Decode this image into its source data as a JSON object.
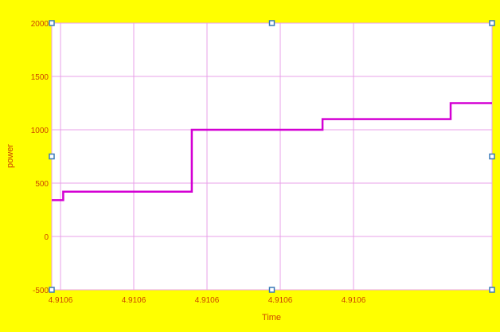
{
  "chart_data": {
    "type": "line",
    "title": "",
    "xlabel": "Time",
    "ylabel": "power",
    "x_tick_labels": [
      "4.9106",
      "4.9106",
      "4.9106",
      "4.9106",
      "4.9106"
    ],
    "y_ticks": [
      -500,
      0,
      500,
      1000,
      1500,
      2000
    ],
    "y_tick_labels": [
      "-500",
      "0",
      "500",
      "1000",
      "1500",
      "2000"
    ],
    "xlim": [
      0,
      100
    ],
    "ylim": [
      -500,
      2000
    ],
    "grid": true,
    "line_color": "#d400d4",
    "background_color": "#ffff00",
    "plot_background_color": "#ffffff",
    "grid_color": "#e8a0e8",
    "axis_text_color": "#cc4400",
    "handle_color": "#3a7ab8",
    "series": [
      {
        "x": [
          0,
          2.6,
          2.6,
          31.8,
          31.8,
          61.5,
          61.5,
          90.6,
          90.6,
          100
        ],
        "y": [
          340,
          340,
          420,
          420,
          1000,
          1000,
          1100,
          1100,
          1250,
          1250
        ]
      }
    ]
  }
}
